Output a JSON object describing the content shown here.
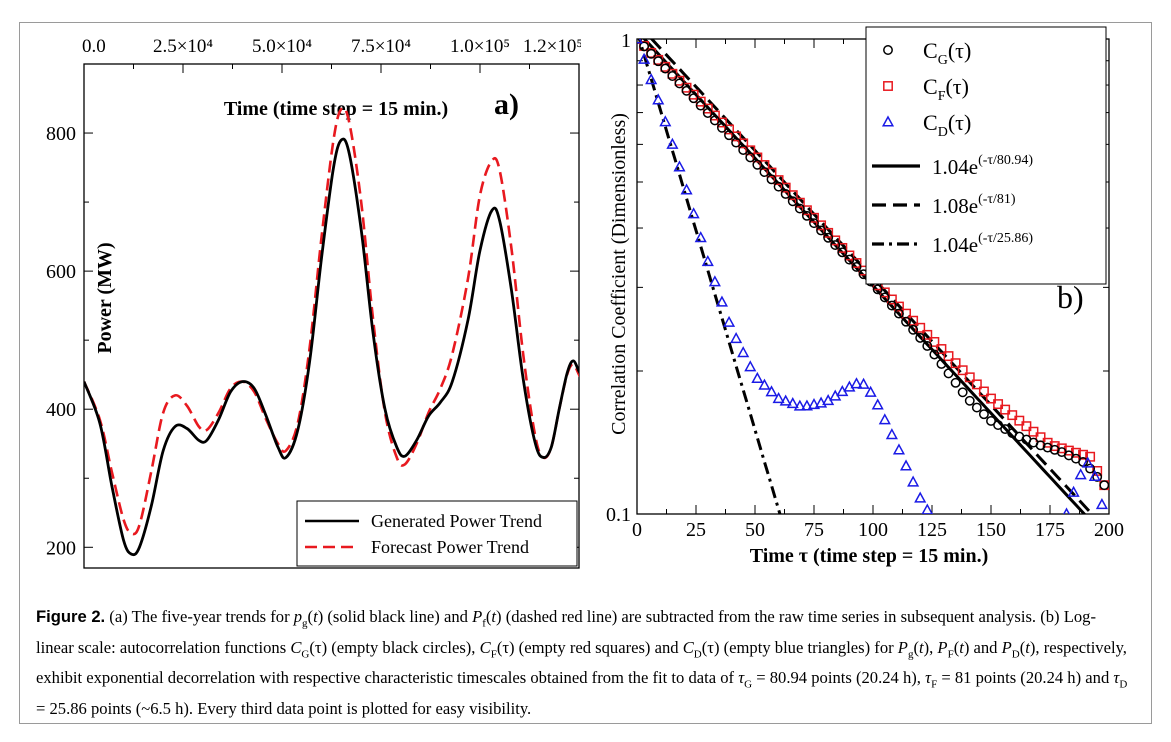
{
  "chart_data": [
    {
      "type": "line",
      "panel_label": "a)",
      "title": "",
      "xlabel": "Time (time step = 15 min.)",
      "ylabel": "Power (MW)",
      "xlim": [
        0,
        125000
      ],
      "ylim": [
        170,
        900
      ],
      "x_ticks": [
        "0.0",
        "2.5×10⁴",
        "5.0×10⁴",
        "7.5×10⁴",
        "1.0×10⁵",
        "1.2×10⁵"
      ],
      "x_tick_values": [
        0,
        25000,
        50000,
        75000,
        100000,
        125000
      ],
      "y_ticks": [
        "200",
        "400",
        "600",
        "800"
      ],
      "y_tick_values": [
        200,
        400,
        600,
        800
      ],
      "legend_position": "bottom-right",
      "series": [
        {
          "name": "Generated Power Trend",
          "color": "#000000",
          "style": "solid",
          "points": [
            [
              0,
              440
            ],
            [
              4000,
              380
            ],
            [
              7000,
              290
            ],
            [
              10000,
              210
            ],
            [
              12000,
              190
            ],
            [
              14000,
              200
            ],
            [
              17000,
              260
            ],
            [
              20000,
              340
            ],
            [
              23000,
              375
            ],
            [
              26000,
              372
            ],
            [
              29000,
              355
            ],
            [
              31000,
              355
            ],
            [
              34000,
              385
            ],
            [
              37000,
              425
            ],
            [
              40000,
              440
            ],
            [
              43000,
              430
            ],
            [
              46000,
              390
            ],
            [
              49000,
              345
            ],
            [
              51000,
              330
            ],
            [
              54000,
              370
            ],
            [
              57000,
              470
            ],
            [
              60000,
              620
            ],
            [
              63000,
              750
            ],
            [
              65000,
              790
            ],
            [
              67000,
              770
            ],
            [
              70000,
              660
            ],
            [
              73000,
              510
            ],
            [
              76000,
              400
            ],
            [
              79000,
              345
            ],
            [
              81000,
              332
            ],
            [
              84000,
              355
            ],
            [
              87000,
              390
            ],
            [
              90000,
              410
            ],
            [
              93000,
              440
            ],
            [
              97000,
              530
            ],
            [
              100000,
              630
            ],
            [
              103000,
              688
            ],
            [
              105000,
              672
            ],
            [
              108000,
              570
            ],
            [
              111000,
              440
            ],
            [
              114000,
              350
            ],
            [
              116000,
              330
            ],
            [
              118000,
              345
            ],
            [
              120000,
              400
            ],
            [
              122000,
              452
            ],
            [
              123500,
              470
            ],
            [
              125000,
              455
            ],
            [
              126000,
              445
            ]
          ]
        },
        {
          "name": "Forecast Power Trend",
          "color": "#e8191f",
          "style": "dashed",
          "points": [
            [
              0,
              440
            ],
            [
              4000,
              385
            ],
            [
              7000,
              310
            ],
            [
              10000,
              240
            ],
            [
              12000,
              220
            ],
            [
              14000,
              232
            ],
            [
              17000,
              310
            ],
            [
              20000,
              395
            ],
            [
              23000,
              420
            ],
            [
              26000,
              405
            ],
            [
              29000,
              375
            ],
            [
              31000,
              370
            ],
            [
              34000,
              395
            ],
            [
              37000,
              430
            ],
            [
              40000,
              440
            ],
            [
              43000,
              425
            ],
            [
              46000,
              385
            ],
            [
              49000,
              350
            ],
            [
              51000,
              340
            ],
            [
              54000,
              380
            ],
            [
              57000,
              490
            ],
            [
              60000,
              650
            ],
            [
              63000,
              790
            ],
            [
              65000,
              835
            ],
            [
              67000,
              815
            ],
            [
              70000,
              700
            ],
            [
              73000,
              530
            ],
            [
              76000,
              395
            ],
            [
              79000,
              330
            ],
            [
              81000,
              320
            ],
            [
              84000,
              350
            ],
            [
              87000,
              395
            ],
            [
              90000,
              430
            ],
            [
              93000,
              480
            ],
            [
              97000,
              590
            ],
            [
              100000,
              710
            ],
            [
              103000,
              760
            ],
            [
              105000,
              745
            ],
            [
              108000,
              630
            ],
            [
              111000,
              475
            ],
            [
              114000,
              360
            ],
            [
              116000,
              330
            ],
            [
              118000,
              345
            ],
            [
              120000,
              400
            ],
            [
              122000,
              450
            ],
            [
              123500,
              465
            ],
            [
              125000,
              450
            ],
            [
              126000,
              440
            ]
          ]
        }
      ]
    },
    {
      "type": "scatter",
      "panel_label": "b)",
      "title": "",
      "xlabel": "Time τ (time step = 15 min.)",
      "ylabel": "Correlation Coefficient (Dimensionless)",
      "xlim": [
        0,
        200
      ],
      "ylim": [
        0.1,
        1
      ],
      "y_scale": "log",
      "x_ticks": [
        "0",
        "25",
        "50",
        "75",
        "100",
        "125",
        "150",
        "175",
        "200"
      ],
      "x_tick_values": [
        0,
        25,
        50,
        75,
        100,
        125,
        150,
        175,
        200
      ],
      "y_ticks": [
        "0.1",
        "1"
      ],
      "y_tick_values": [
        0.1,
        1
      ],
      "legend_position": "top-right",
      "series": [
        {
          "name": "C_G(τ)",
          "label_base": "C",
          "label_sub": "G",
          "label_arg": "(τ)",
          "marker": "circle",
          "color": "#000000",
          "knots": [
            [
              0,
              1.0
            ],
            [
              50,
              0.55
            ],
            [
              100,
              0.305
            ],
            [
              125,
              0.22
            ],
            [
              140,
              0.175
            ],
            [
              150,
              0.157
            ],
            [
              160,
              0.147
            ],
            [
              170,
              0.14
            ],
            [
              180,
              0.135
            ],
            [
              190,
              0.128
            ],
            [
              198,
              0.115
            ]
          ]
        },
        {
          "name": "C_F(τ)",
          "label_base": "C",
          "label_sub": "F",
          "label_arg": "(τ)",
          "marker": "square",
          "color": "#e8191f",
          "knots": [
            [
              0,
              1.0
            ],
            [
              50,
              0.57
            ],
            [
              100,
              0.31
            ],
            [
              150,
              0.175
            ],
            [
              175,
              0.14
            ],
            [
              185,
              0.135
            ],
            [
              192,
              0.132
            ],
            [
              198,
              0.115
            ]
          ]
        },
        {
          "name": "C_D(τ)",
          "label_base": "C",
          "label_sub": "D",
          "label_arg": "(τ)",
          "marker": "triangle",
          "color": "#1a1ae6",
          "knots": [
            [
              0,
              1.0
            ],
            [
              10,
              0.72
            ],
            [
              20,
              0.5
            ],
            [
              30,
              0.34
            ],
            [
              40,
              0.245
            ],
            [
              50,
              0.195
            ],
            [
              60,
              0.175
            ],
            [
              70,
              0.168
            ],
            [
              80,
              0.172
            ],
            [
              90,
              0.185
            ],
            [
              95,
              0.19
            ],
            [
              100,
              0.178
            ],
            [
              110,
              0.14
            ],
            [
              120,
              0.108
            ],
            [
              124,
              0.1
            ]
          ],
          "tail_knots": [
            [
              182,
              0.1
            ],
            [
              186,
              0.115
            ],
            [
              189,
              0.124
            ],
            [
              191,
              0.128
            ],
            [
              194,
              0.12
            ],
            [
              198,
              0.1
            ]
          ]
        },
        {
          "name": "fit_G",
          "label_prefix": "1.04e",
          "label_exp": "(-τ/80.94)",
          "style": "solid",
          "color": "#000000",
          "a": 1.04,
          "tau": 80.94
        },
        {
          "name": "fit_F",
          "label_prefix": "1.08e",
          "label_exp": "(-τ/81)",
          "style": "dashed",
          "color": "#000000",
          "a": 1.08,
          "tau": 81
        },
        {
          "name": "fit_D",
          "label_prefix": "1.04e",
          "label_exp": "(-τ/25.86)",
          "style": "dashdot",
          "color": "#000000",
          "a": 1.04,
          "tau": 25.86
        }
      ]
    }
  ],
  "caption": {
    "label": "Figure 2.",
    "segments": [
      {
        "t": " (a) The five-year trends for "
      },
      {
        "t": "p",
        "i": true
      },
      {
        "t": "g",
        "sub": true
      },
      {
        "t": "("
      },
      {
        "t": "t",
        "i": true
      },
      {
        "t": ") (solid black line) and "
      },
      {
        "t": "P",
        "i": true
      },
      {
        "t": "f",
        "sub": true
      },
      {
        "t": "("
      },
      {
        "t": "t",
        "i": true
      },
      {
        "t": ") (dashed red line) are subtracted from the raw time series in subsequent analysis. (b) Log-linear scale: autocorrelation functions "
      },
      {
        "t": "C",
        "i": true
      },
      {
        "t": "G",
        "sub": true
      },
      {
        "t": "(τ) (empty black circles), "
      },
      {
        "t": "C",
        "i": true
      },
      {
        "t": "F",
        "sub": true
      },
      {
        "t": "(τ) (empty red squares) and "
      },
      {
        "t": "C",
        "i": true
      },
      {
        "t": "D",
        "sub": true
      },
      {
        "t": "(τ) (empty blue triangles) for "
      },
      {
        "t": "P",
        "i": true
      },
      {
        "t": "g",
        "sub": true
      },
      {
        "t": "("
      },
      {
        "t": "t",
        "i": true
      },
      {
        "t": "), "
      },
      {
        "t": "P",
        "i": true
      },
      {
        "t": "F",
        "sub": true
      },
      {
        "t": "("
      },
      {
        "t": "t",
        "i": true
      },
      {
        "t": ") and "
      },
      {
        "t": "P",
        "i": true
      },
      {
        "t": "D",
        "sub": true
      },
      {
        "t": "("
      },
      {
        "t": "t",
        "i": true
      },
      {
        "t": "), respectively, exhibit exponential decorrelation with respective characteristic timescales obtained from the fit to data of "
      },
      {
        "t": "τ",
        "i": true
      },
      {
        "t": "G",
        "sub": true
      },
      {
        "t": " = 80.94 points (20.24 h), "
      },
      {
        "t": "τ",
        "i": true
      },
      {
        "t": "F",
        "sub": true
      },
      {
        "t": " = 81 points (20.24 h) and "
      },
      {
        "t": "τ",
        "i": true
      },
      {
        "t": "D",
        "sub": true
      },
      {
        "t": " = 25.86 points (~6.5 h). Every third data point is plotted for easy visibility."
      }
    ]
  }
}
